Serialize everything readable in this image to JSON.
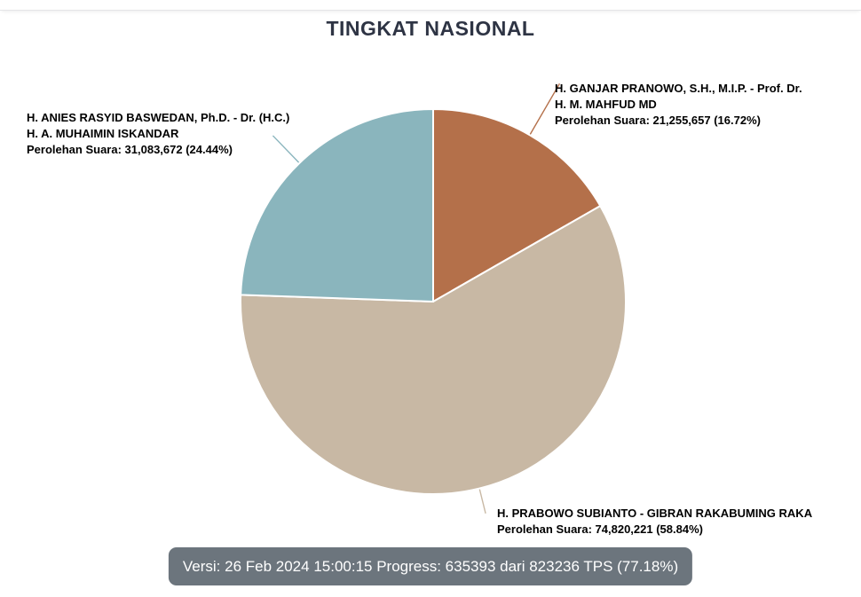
{
  "page": {
    "title": "TINGKAT NASIONAL"
  },
  "chart_data": {
    "type": "pie",
    "title": "TINGKAT NASIONAL",
    "start_angle_deg": 0,
    "direction": "clockwise",
    "legend": "none (direct labels with leader lines)",
    "slices": [
      {
        "id": "ganjar-mahfud",
        "name": "H. GANJAR PRANOWO, S.H., M.I.P. - Prof. Dr. H. M. MAHFUD MD",
        "votes": 21255657,
        "votes_label": "Perolehan Suara: 21,255,657 (16.72%)",
        "percent": 16.72,
        "color": "#b4704a"
      },
      {
        "id": "prabowo-gibran",
        "name": "H. PRABOWO SUBIANTO - GIBRAN RAKABUMING RAKA",
        "votes": 74820221,
        "votes_label": "Perolehan Suara: 74,820,221 (58.84%)",
        "percent": 58.84,
        "color": "#c8b8a4"
      },
      {
        "id": "anies-muhaimin",
        "name": "H. ANIES RASYID BASWEDAN, Ph.D. - Dr. (H.C.) H. A. MUHAIMIN ISKANDAR",
        "votes": 31083672,
        "votes_label": "Perolehan Suara: 31,083,672 (24.44%)",
        "percent": 24.44,
        "color": "#8ab5bd"
      }
    ]
  },
  "status_bar": {
    "text": "Versi: 26 Feb 2024 15:00:15 Progress: 635393 dari 823236 TPS (77.18%)",
    "versi": "26 Feb 2024 15:00:15",
    "progress_counted_tps": 635393,
    "progress_total_tps": 823236,
    "progress_percent": "77.18%"
  }
}
